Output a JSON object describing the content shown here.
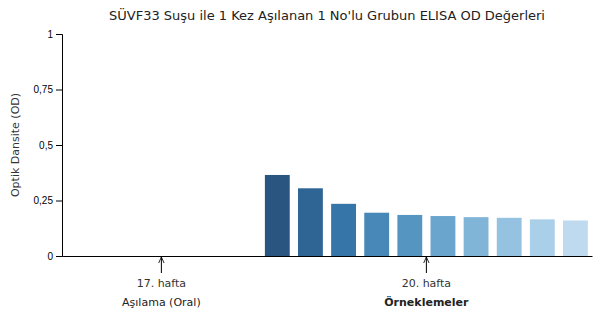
{
  "chart_data": {
    "type": "bar",
    "title": "SÜVF33 Suşu ile 1 Kez Aşılanan 1 No'lu Grubun ELISA OD Değerleri",
    "y_label": "Optik Dansite (OD)",
    "categories": [
      null,
      null,
      null,
      null,
      null,
      null,
      null,
      null,
      null,
      null,
      null,
      null,
      null,
      null,
      null,
      null
    ],
    "values": [
      null,
      null,
      null,
      null,
      null,
      null,
      0.365,
      0.305,
      0.235,
      0.195,
      0.185,
      0.18,
      0.175,
      0.172,
      0.165,
      0.16
    ],
    "colors": [
      null,
      null,
      null,
      null,
      null,
      null,
      "#2a5580",
      "#2e6595",
      "#3575a8",
      "#4888b8",
      "#5595c2",
      "#6aa5ce",
      "#80b5d8",
      "#95c2e0",
      "#aacfe8",
      "#bfdaee"
    ],
    "ylim": [
      0,
      1
    ],
    "yticks": [
      0,
      {
        "value": 0.25,
        "label": "0,25"
      },
      {
        "value": 0.5,
        "label": "0,5"
      },
      {
        "value": 0.75,
        "label": "0,75"
      },
      1
    ],
    "grid": false,
    "tick_labels": "y",
    "annotations": [
      {
        "label": "17. hafta",
        "sublabel": "Aşılama (Oral)"
      },
      {
        "label": "20. hafta",
        "sublabel": "Örneklemeler"
      }
    ]
  }
}
